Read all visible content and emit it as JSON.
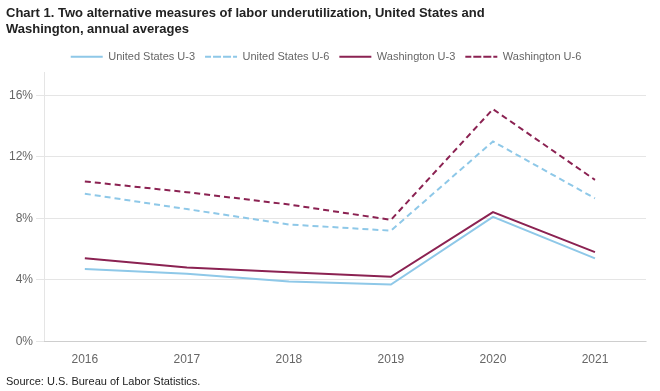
{
  "chart_data": {
    "type": "line",
    "title": "Chart 1. Two alternative measures of labor underutilization, United States and\nWashington, annual averages",
    "annotations": [
      "Source: U.S. Bureau of Labor Statistics."
    ],
    "x": [
      2016,
      2017,
      2018,
      2019,
      2020,
      2021
    ],
    "series": [
      {
        "name": "United States U-3",
        "color": "#8EC8E8",
        "line_style": "solid",
        "values": [
          4.7,
          4.4,
          3.9,
          3.7,
          8.1,
          5.4
        ]
      },
      {
        "name": "United States U-6",
        "color": "#8EC8E8",
        "line_style": "dashed",
        "values": [
          9.6,
          8.6,
          7.6,
          7.2,
          13.0,
          9.3
        ]
      },
      {
        "name": "Washington U-3",
        "color": "#8B2252",
        "line_style": "solid",
        "values": [
          5.4,
          4.8,
          4.5,
          4.2,
          8.4,
          5.8
        ]
      },
      {
        "name": "Washington U-6",
        "color": "#8B2252",
        "line_style": "dashed",
        "values": [
          10.4,
          9.7,
          8.9,
          7.9,
          15.1,
          10.5
        ]
      }
    ],
    "xlim": [
      2015.6,
      2021.5
    ],
    "xticks": [
      2016,
      2017,
      2018,
      2019,
      2020,
      2021
    ],
    "ylim": [
      0,
      17.5
    ],
    "yticks": [
      {
        "value": 0,
        "label": "0%"
      },
      {
        "value": 4,
        "label": "4%"
      },
      {
        "value": 8,
        "label": "8%"
      },
      {
        "value": 12,
        "label": "12%"
      },
      {
        "value": 16,
        "label": "16%"
      }
    ],
    "grid": "y",
    "legend": "top"
  }
}
